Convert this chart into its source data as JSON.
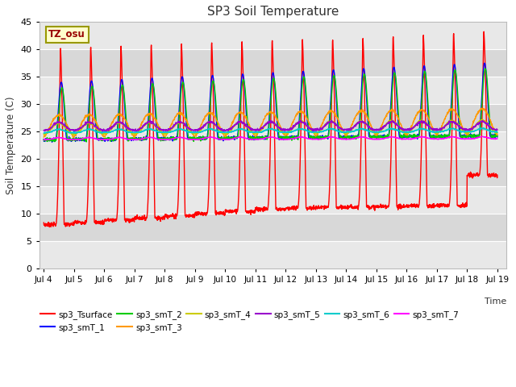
{
  "title": "SP3 Soil Temperature",
  "xlabel": "Time",
  "ylabel": "Soil Temperature (C)",
  "xlim_days": [
    3.85,
    19.3
  ],
  "ylim": [
    0,
    45
  ],
  "yticks": [
    0,
    5,
    10,
    15,
    20,
    25,
    30,
    35,
    40,
    45
  ],
  "xtick_days": [
    4,
    5,
    6,
    7,
    8,
    9,
    10,
    11,
    12,
    13,
    14,
    15,
    16,
    17,
    18,
    19
  ],
  "xtick_labels": [
    "Jul 4",
    "Jul 5",
    "Jul 6",
    "Jul 7",
    "Jul 8",
    "Jul 9",
    "Jul 10",
    "Jul 11",
    "Jul 12",
    "Jul 13",
    "Jul 14",
    "Jul 15",
    "Jul 16",
    "Jul 17",
    "Jul 18",
    "Jul 19"
  ],
  "annotation_text": "TZ_osu",
  "annotation_color": "#990000",
  "annotation_bg": "#ffffcc",
  "annotation_border": "#999900",
  "series_colors": {
    "sp3_Tsurface": "#ff0000",
    "sp3_smT_1": "#0000ff",
    "sp3_smT_2": "#00cc00",
    "sp3_smT_3": "#ff9900",
    "sp3_smT_4": "#cccc00",
    "sp3_smT_5": "#9900cc",
    "sp3_smT_6": "#00cccc",
    "sp3_smT_7": "#ff00ff"
  },
  "band_colors": [
    "#e8e8e8",
    "#d8d8d8"
  ],
  "fig_bg": "#ffffff",
  "grid_line_color": "#ffffff"
}
